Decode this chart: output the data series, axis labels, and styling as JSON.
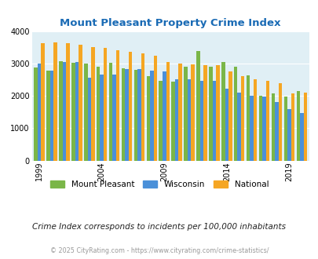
{
  "title": "Mount Pleasant Property Crime Index",
  "years": [
    1999,
    2000,
    2001,
    2002,
    2003,
    2004,
    2005,
    2006,
    2007,
    2008,
    2009,
    2010,
    2011,
    2012,
    2013,
    2014,
    2015,
    2016,
    2017,
    2018,
    2019,
    2020
  ],
  "mount_pleasant": [
    2880,
    2770,
    3080,
    3010,
    2990,
    2890,
    3010,
    2850,
    2800,
    2600,
    2470,
    2440,
    2910,
    3390,
    2910,
    3040,
    2890,
    2640,
    2000,
    2080,
    1990,
    2140
  ],
  "wisconsin": [
    3000,
    2780,
    3050,
    3050,
    2560,
    2650,
    2650,
    2820,
    2830,
    2790,
    2760,
    2500,
    2510,
    2470,
    2460,
    2220,
    2090,
    2010,
    1970,
    1820,
    1590,
    1480
  ],
  "national": [
    3630,
    3660,
    3620,
    3590,
    3510,
    3490,
    3400,
    3350,
    3310,
    3250,
    3040,
    3000,
    2970,
    2950,
    2960,
    2750,
    2620,
    2500,
    2460,
    2390,
    2080,
    2110
  ],
  "mount_pleasant_color": "#7ab648",
  "wisconsin_color": "#4a90d9",
  "national_color": "#f5a623",
  "bg_color": "#e0eff5",
  "title_color": "#1a6bb5",
  "ylim": [
    0,
    4000
  ],
  "yticks": [
    0,
    1000,
    2000,
    3000,
    4000
  ],
  "xtick_years": [
    1999,
    2004,
    2009,
    2014,
    2019
  ],
  "subtitle": "Crime Index corresponds to incidents per 100,000 inhabitants",
  "footer": "© 2025 CityRating.com - https://www.cityrating.com/crime-statistics/",
  "legend_labels": [
    "Mount Pleasant",
    "Wisconsin",
    "National"
  ]
}
